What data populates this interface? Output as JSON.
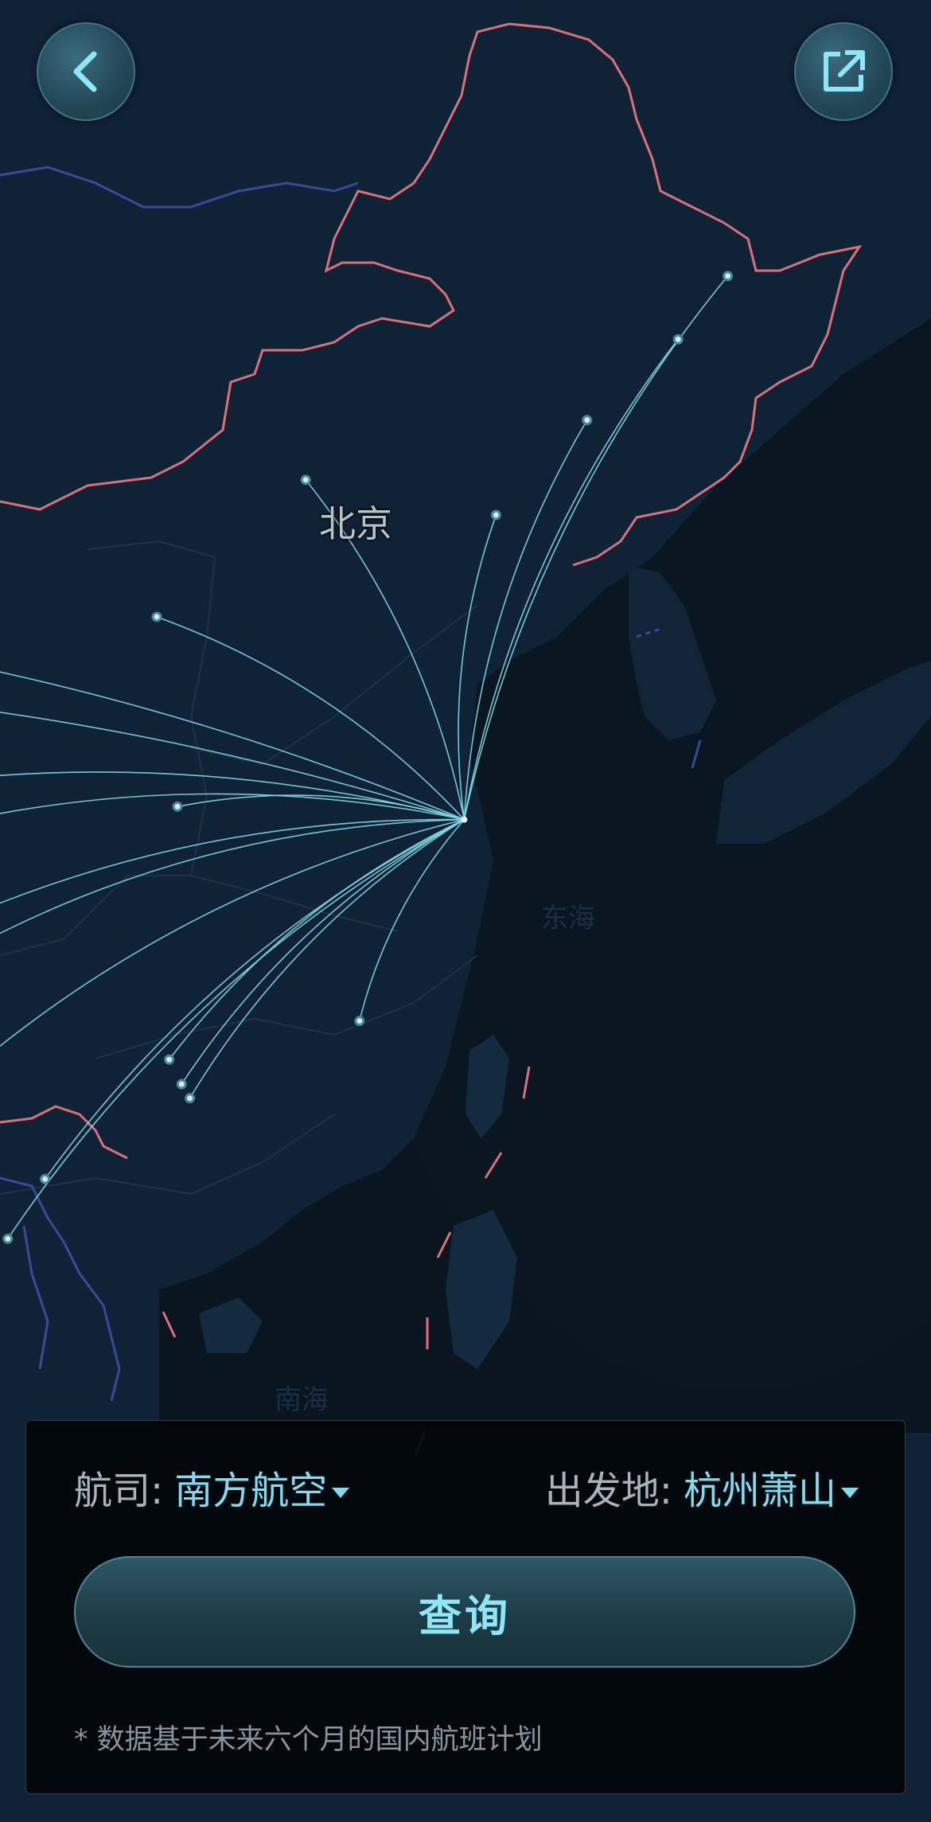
{
  "map": {
    "city_label": "北京",
    "sea_label": "东海",
    "sea_label_2": "南海",
    "route_color": "#7fd9e6",
    "border_color": "#d9707c",
    "origin": {
      "name": "杭州萧山",
      "lon": 120.43,
      "lat": 30.23
    },
    "destinations": [
      {
        "lon": 126.8,
        "lat": 45.7
      },
      {
        "lon": 125.6,
        "lat": 43.9
      },
      {
        "lon": 123.4,
        "lat": 41.6
      },
      {
        "lon": 116.6,
        "lat": 39.9
      },
      {
        "lon": 121.2,
        "lat": 38.9
      },
      {
        "lon": 113.0,
        "lat": 36.0
      },
      {
        "lon": 113.5,
        "lat": 30.6
      },
      {
        "lon": 104.0,
        "lat": 30.6
      },
      {
        "lon": 106.6,
        "lat": 29.7
      },
      {
        "lon": 106.8,
        "lat": 26.6
      },
      {
        "lon": 108.4,
        "lat": 26.5
      },
      {
        "lon": 108.2,
        "lat": 22.8
      },
      {
        "lon": 113.3,
        "lat": 23.4
      },
      {
        "lon": 113.6,
        "lat": 22.7
      },
      {
        "lon": 113.8,
        "lat": 22.3
      },
      {
        "lon": 110.3,
        "lat": 20.0
      },
      {
        "lon": 109.4,
        "lat": 18.3
      },
      {
        "lon": 117.9,
        "lat": 24.5
      },
      {
        "lon": 90.0,
        "lat": 36.0
      },
      {
        "lon": 88.0,
        "lat": 33.0
      }
    ]
  },
  "nav": {
    "back_icon": "chevron-left-icon",
    "share_icon": "share-external-icon"
  },
  "filters": {
    "airline_label": "航司:",
    "airline_value": "南方航空",
    "origin_label": "出发地:",
    "origin_value": "杭州萧山"
  },
  "query_label": "查询",
  "footnote": "* 数据基于未来六个月的国内航班计划"
}
